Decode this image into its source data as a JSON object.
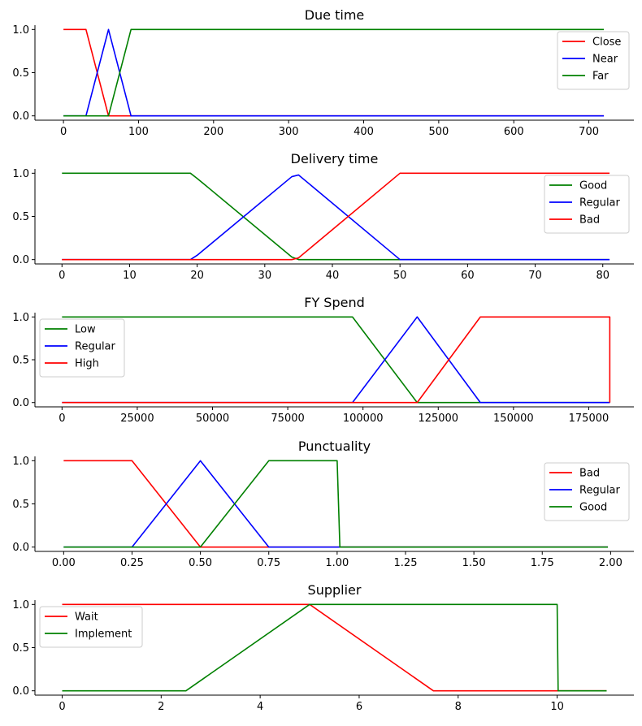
{
  "chart_data": [
    {
      "type": "line",
      "title": "Due time",
      "xlabel": "",
      "ylabel": "",
      "xlim": [
        -38,
        760
      ],
      "ylim": [
        -0.05,
        1.05
      ],
      "xticks": [
        0,
        100,
        200,
        300,
        400,
        500,
        600,
        700
      ],
      "xtick_labels": [
        "0",
        "100",
        "200",
        "300",
        "400",
        "500",
        "600",
        "700"
      ],
      "yticks": [
        0.0,
        0.5,
        1.0
      ],
      "ytick_labels": [
        "0.0",
        "0.5",
        "1.0"
      ],
      "legend_position": "right",
      "grid": false,
      "series": [
        {
          "name": "Close",
          "color": "#ff0000",
          "x": [
            0,
            30,
            60,
            720
          ],
          "y": [
            1,
            1,
            0,
            0
          ]
        },
        {
          "name": "Near",
          "color": "#0000ff",
          "x": [
            0,
            30,
            60,
            90,
            720
          ],
          "y": [
            0,
            0,
            1,
            0,
            0
          ]
        },
        {
          "name": "Far",
          "color": "#008000",
          "x": [
            0,
            60,
            90,
            720
          ],
          "y": [
            0,
            0,
            1,
            1
          ]
        }
      ]
    },
    {
      "type": "line",
      "title": "Delivery time",
      "xlabel": "",
      "ylabel": "",
      "xlim": [
        -4,
        84.6
      ],
      "ylim": [
        -0.05,
        1.05
      ],
      "xticks": [
        0,
        10,
        20,
        30,
        40,
        50,
        60,
        70,
        80
      ],
      "xtick_labels": [
        "0",
        "10",
        "20",
        "30",
        "40",
        "50",
        "60",
        "70",
        "80"
      ],
      "yticks": [
        0.0,
        0.5,
        1.0
      ],
      "ytick_labels": [
        "0.0",
        "0.5",
        "1.0"
      ],
      "legend_position": "right",
      "grid": false,
      "series": [
        {
          "name": "Good",
          "color": "#008000",
          "x": [
            0,
            19,
            20,
            34,
            35,
            81
          ],
          "y": [
            1,
            1,
            0.94,
            0.03,
            0,
            0
          ]
        },
        {
          "name": "Regular",
          "color": "#0000ff",
          "x": [
            0,
            19,
            20,
            34,
            35,
            50,
            81
          ],
          "y": [
            0,
            0,
            0.05,
            0.96,
            0.98,
            0,
            0
          ]
        },
        {
          "name": "Bad",
          "color": "#ff0000",
          "x": [
            0,
            34,
            35,
            50,
            81
          ],
          "y": [
            0,
            0,
            0.02,
            1,
            1
          ]
        }
      ]
    },
    {
      "type": "line",
      "title": "FY Spend",
      "xlabel": "",
      "ylabel": "",
      "xlim": [
        -9000,
        190000
      ],
      "ylim": [
        -0.05,
        1.05
      ],
      "xticks": [
        0,
        25000,
        50000,
        75000,
        100000,
        125000,
        150000,
        175000
      ],
      "xtick_labels": [
        "0",
        "25000",
        "50000",
        "75000",
        "100000",
        "125000",
        "150000",
        "175000"
      ],
      "yticks": [
        0.0,
        0.5,
        1.0
      ],
      "ytick_labels": [
        "0.0",
        "0.5",
        "1.0"
      ],
      "legend_position": "left",
      "grid": false,
      "series": [
        {
          "name": "Low",
          "color": "#008000",
          "x": [
            0,
            96500,
            118000,
            139000,
            182000
          ],
          "y": [
            1,
            1,
            0,
            0,
            0
          ]
        },
        {
          "name": "Regular",
          "color": "#0000ff",
          "x": [
            0,
            96500,
            118000,
            139000,
            182000
          ],
          "y": [
            0,
            0,
            1,
            0,
            0
          ]
        },
        {
          "name": "High",
          "color": "#ff0000",
          "x": [
            0,
            118000,
            139000,
            182000,
            182000
          ],
          "y": [
            0,
            0,
            1,
            1,
            0
          ]
        }
      ]
    },
    {
      "type": "line",
      "title": "Punctuality",
      "xlabel": "",
      "ylabel": "",
      "xlim": [
        -0.105,
        2.085
      ],
      "ylim": [
        -0.05,
        1.05
      ],
      "xticks": [
        0,
        0.25,
        0.5,
        0.75,
        1.0,
        1.25,
        1.5,
        1.75,
        2.0
      ],
      "xtick_labels": [
        "0.00",
        "0.25",
        "0.50",
        "0.75",
        "1.00",
        "1.25",
        "1.50",
        "1.75",
        "2.00"
      ],
      "yticks": [
        0.0,
        0.5,
        1.0
      ],
      "ytick_labels": [
        "0.0",
        "0.5",
        "1.0"
      ],
      "legend_position": "right",
      "grid": false,
      "series": [
        {
          "name": "Bad",
          "color": "#ff0000",
          "x": [
            0,
            0.25,
            0.5,
            0.75,
            1.99
          ],
          "y": [
            1,
            1,
            0,
            0,
            0
          ]
        },
        {
          "name": "Regular",
          "color": "#0000ff",
          "x": [
            0,
            0.25,
            0.5,
            0.75,
            1.99
          ],
          "y": [
            0,
            0,
            1,
            0,
            0
          ]
        },
        {
          "name": "Good",
          "color": "#008000",
          "x": [
            0,
            0.5,
            0.75,
            1.0,
            1.01,
            1.99
          ],
          "y": [
            0,
            0,
            1,
            1,
            0,
            0
          ]
        }
      ]
    },
    {
      "type": "line",
      "title": "Supplier",
      "xlabel": "",
      "ylabel": "",
      "xlim": [
        -0.55,
        11.55
      ],
      "ylim": [
        -0.05,
        1.05
      ],
      "xticks": [
        0,
        2,
        4,
        6,
        8,
        10
      ],
      "xtick_labels": [
        "0",
        "2",
        "4",
        "6",
        "8",
        "10"
      ],
      "yticks": [
        0.0,
        0.5,
        1.0
      ],
      "ytick_labels": [
        "0.0",
        "0.5",
        "1.0"
      ],
      "legend_position": "left",
      "grid": false,
      "series": [
        {
          "name": "Wait",
          "color": "#ff0000",
          "x": [
            0,
            5,
            7.5,
            11
          ],
          "y": [
            1,
            1,
            0,
            0
          ]
        },
        {
          "name": "Implement",
          "color": "#008000",
          "x": [
            0,
            2.5,
            5,
            10,
            10.02,
            11
          ],
          "y": [
            0,
            0,
            1,
            1,
            0,
            0
          ]
        }
      ]
    }
  ]
}
